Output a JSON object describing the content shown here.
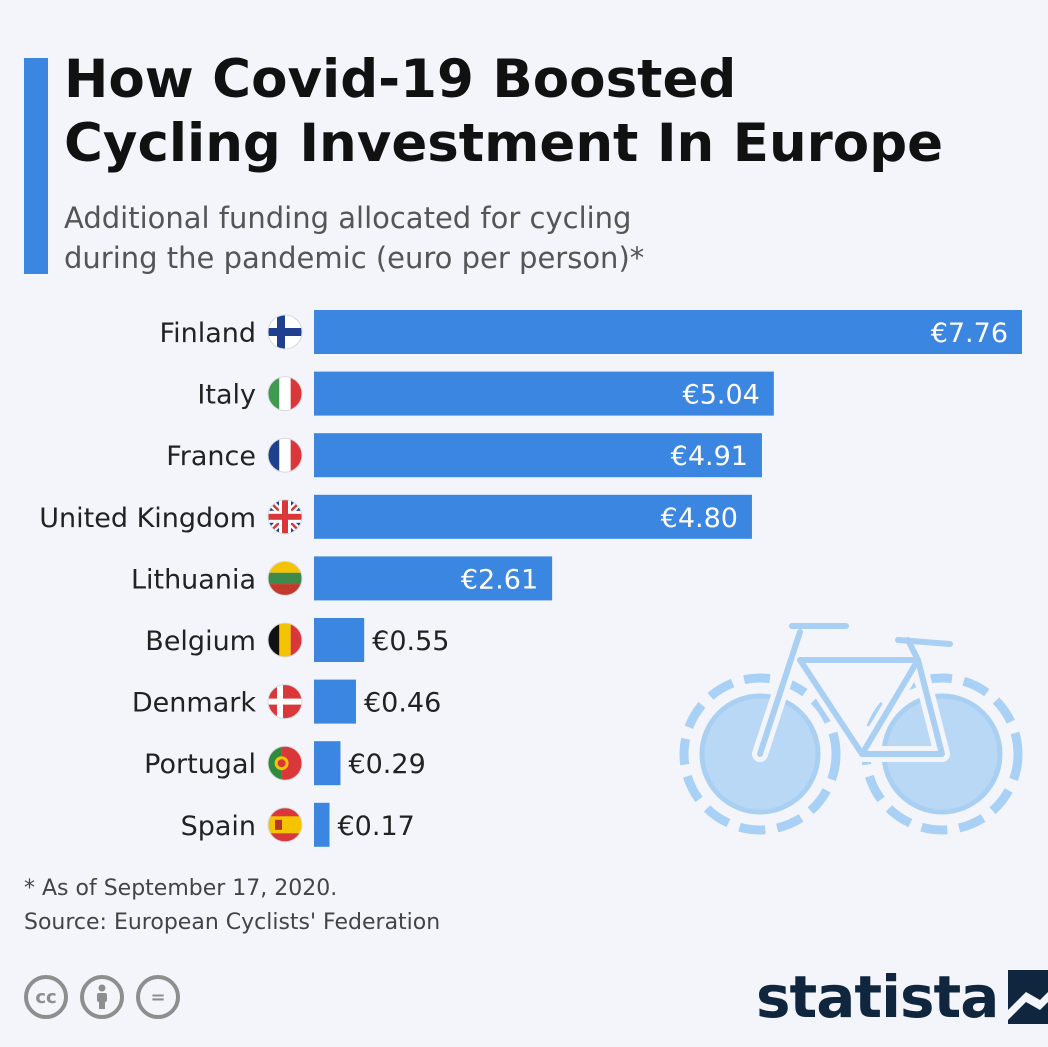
{
  "header": {
    "title": "How Covid-19 Boosted\nCycling Investment In Europe",
    "subtitle": "Additional funding allocated for cycling\nduring the pandemic (euro per person)*"
  },
  "colors": {
    "accent": "#3b86e0",
    "bar": "#3b86e0",
    "background": "#f3f5fb",
    "bike": "#a9d0f5",
    "bike_dark": "#a9cff2"
  },
  "chart_data": {
    "type": "bar",
    "orientation": "horizontal",
    "title": "How Covid-19 Boosted Cycling Investment In Europe",
    "subtitle": "Additional funding allocated for cycling during the pandemic (euro per person)*",
    "categories": [
      "Finland",
      "Italy",
      "France",
      "United Kingdom",
      "Lithuania",
      "Belgium",
      "Denmark",
      "Portugal",
      "Spain"
    ],
    "values": [
      7.76,
      5.04,
      4.91,
      4.8,
      2.61,
      0.55,
      0.46,
      0.29,
      0.17
    ],
    "labels": [
      "€7.76",
      "€5.04",
      "€4.91",
      "€4.80",
      "€2.61",
      "€0.55",
      "€0.46",
      "€0.29",
      "€0.17"
    ],
    "flags": [
      "finland-flag-icon",
      "italy-flag-icon",
      "france-flag-icon",
      "uk-flag-icon",
      "lithuania-flag-icon",
      "belgium-flag-icon",
      "denmark-flag-icon",
      "portugal-flag-icon",
      "spain-flag-icon"
    ],
    "unit": "euro per person",
    "xlim": [
      0,
      7.76
    ],
    "grid": false,
    "illustration": "bicycle-icon"
  },
  "footer": {
    "note": "* As of September 17, 2020.",
    "source": "Source: European Cyclists' Federation",
    "license_icons": [
      "cc-icon",
      "by-icon",
      "nd-icon"
    ],
    "cc_label": "cc",
    "nd_label": "=",
    "brand": "statista"
  }
}
